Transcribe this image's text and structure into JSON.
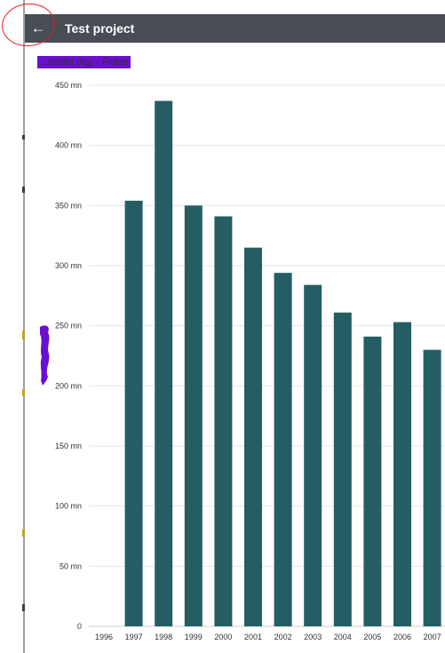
{
  "header": {
    "title": "Test project",
    "back_icon": "arrow-left-icon",
    "back_glyph": "←",
    "background": "#474c55"
  },
  "chart_label": "...antitet (kg) - Fisker",
  "chart_data": {
    "type": "bar",
    "categories": [
      "1996",
      "1997",
      "1998",
      "1999",
      "2000",
      "2001",
      "2002",
      "2003",
      "2004",
      "2005",
      "2006",
      "2007"
    ],
    "values": [
      null,
      354000000,
      437000000,
      350000000,
      341000000,
      315000000,
      294000000,
      284000000,
      261000000,
      241000000,
      253000000,
      230000000
    ],
    "ylim": [
      0,
      450000000
    ],
    "yticks": [
      {
        "value": 0,
        "label": "0"
      },
      {
        "value": 50000000,
        "label": "50 mn"
      },
      {
        "value": 100000000,
        "label": "100 mn"
      },
      {
        "value": 150000000,
        "label": "150 mn"
      },
      {
        "value": 200000000,
        "label": "200 mn"
      },
      {
        "value": 250000000,
        "label": "250 mn"
      },
      {
        "value": 300000000,
        "label": "300 mn"
      },
      {
        "value": 350000000,
        "label": "350 mn"
      },
      {
        "value": 400000000,
        "label": "400 mn"
      },
      {
        "value": 450000000,
        "label": "450 mn"
      }
    ],
    "bar_color": "#245e64",
    "grid": true
  }
}
